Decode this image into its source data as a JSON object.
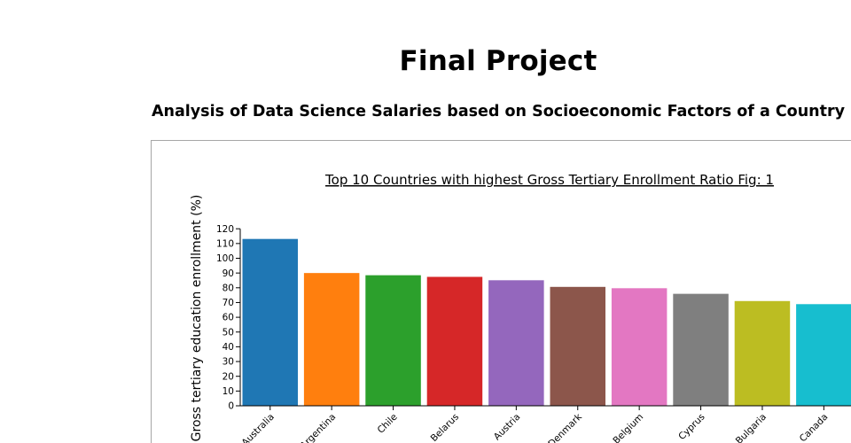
{
  "page": {
    "title": "Final Project",
    "subtitle": "Analysis of Data Science Salaries based on Socioeconomic Factors of a Country"
  },
  "chart_data": {
    "type": "bar",
    "title": "Top 10 Countries with highest Gross Tertiary Enrollment Ratio Fig: 1",
    "xlabel": "",
    "ylabel": "Gross tertiary education enrollment (%)",
    "categories": [
      "Australia",
      "Argentina",
      "Chile",
      "Belarus",
      "Austria",
      "Denmark",
      "Belgium",
      "Cyprus",
      "Bulgaria",
      "Canada"
    ],
    "values": [
      113.1,
      90.0,
      88.5,
      87.4,
      85.1,
      80.6,
      79.7,
      75.9,
      71.0,
      68.9
    ],
    "colors": [
      "#1f77b4",
      "#ff7f0e",
      "#2ca02c",
      "#d62728",
      "#9467bd",
      "#8c564b",
      "#e377c2",
      "#7f7f7f",
      "#bcbd22",
      "#17becf"
    ],
    "ylim": [
      0,
      120
    ],
    "yticks": [
      "0",
      "10",
      "20",
      "30",
      "40",
      "50",
      "60",
      "70",
      "80",
      "90",
      "100",
      "110",
      "120"
    ],
    "grid": false,
    "legend": "none"
  }
}
